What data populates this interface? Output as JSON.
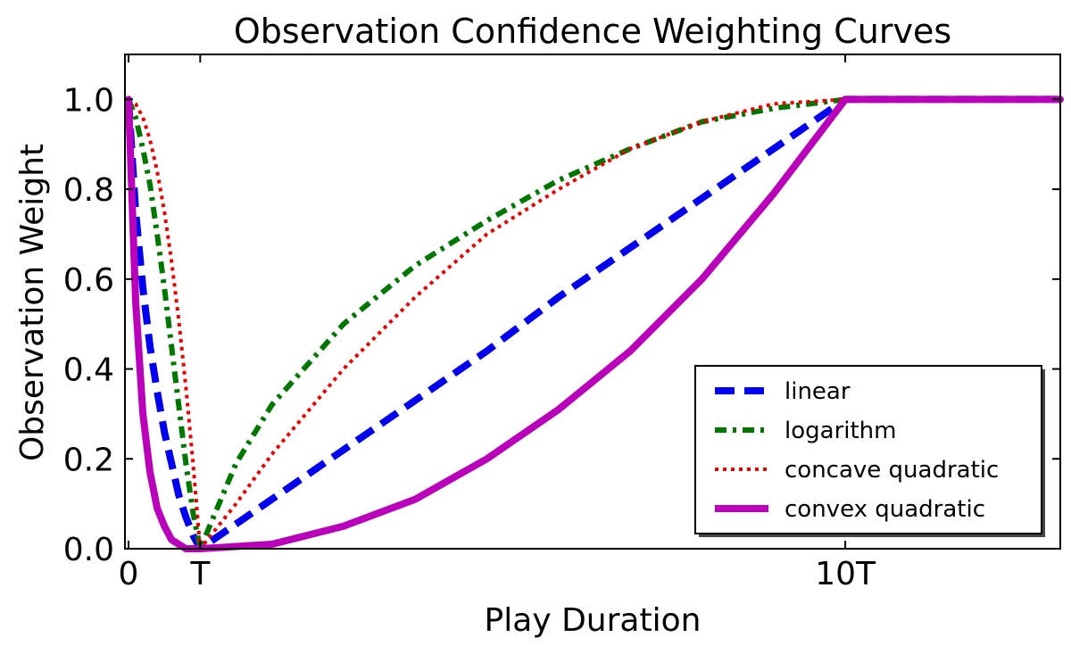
{
  "chart_data": {
    "type": "line",
    "title": "Observation Confidence Weighting Curves",
    "xlabel": "Play Duration",
    "ylabel": "Observation Weight",
    "xlim": [
      -0.05,
      13
    ],
    "ylim": [
      0,
      1.1
    ],
    "x_ticks": [
      {
        "value": 0,
        "label": "0"
      },
      {
        "value": 1,
        "label": "T"
      },
      {
        "value": 10,
        "label": "10T"
      }
    ],
    "y_ticks": [
      {
        "value": 0.0,
        "label": "0.0"
      },
      {
        "value": 0.2,
        "label": "0.2"
      },
      {
        "value": 0.4,
        "label": "0.4"
      },
      {
        "value": 0.6,
        "label": "0.6"
      },
      {
        "value": 0.8,
        "label": "0.8"
      },
      {
        "value": 1.0,
        "label": "1.0"
      }
    ],
    "grid": false,
    "legend_position": "lower-right",
    "series": [
      {
        "name": "linear",
        "color": "#0000ee",
        "style": "dashed",
        "x": [
          0,
          0.1,
          0.2,
          0.3,
          0.4,
          0.5,
          0.6,
          0.7,
          0.8,
          0.9,
          1,
          2,
          3,
          4,
          5,
          6,
          7,
          8,
          9,
          10,
          11,
          12,
          13
        ],
        "y": [
          1.0,
          0.75,
          0.58,
          0.45,
          0.35,
          0.26,
          0.19,
          0.12,
          0.07,
          0.03,
          0.0,
          0.11,
          0.22,
          0.33,
          0.44,
          0.56,
          0.67,
          0.78,
          0.89,
          1.0,
          1.0,
          1.0,
          1.0
        ]
      },
      {
        "name": "logarithm",
        "color": "#007700",
        "style": "dashdot",
        "x": [
          0,
          0.1,
          0.2,
          0.3,
          0.4,
          0.5,
          0.6,
          0.7,
          0.8,
          0.9,
          1,
          1.5,
          2,
          3,
          4,
          5,
          6,
          7,
          8,
          9,
          10,
          11,
          12,
          13
        ],
        "y": [
          1.0,
          0.96,
          0.89,
          0.81,
          0.7,
          0.58,
          0.45,
          0.32,
          0.19,
          0.08,
          0.0,
          0.19,
          0.32,
          0.5,
          0.63,
          0.73,
          0.82,
          0.89,
          0.95,
          0.98,
          1.0,
          1.0,
          1.0,
          1.0
        ]
      },
      {
        "name": "concave quadratic",
        "color": "#ee0000",
        "style": "dotted",
        "x": [
          0,
          0.1,
          0.2,
          0.3,
          0.4,
          0.5,
          0.6,
          0.7,
          0.8,
          0.9,
          1,
          1.5,
          2,
          3,
          4,
          5,
          6,
          7,
          8,
          9,
          10,
          11,
          12,
          13
        ],
        "y": [
          1.0,
          0.99,
          0.96,
          0.91,
          0.84,
          0.75,
          0.64,
          0.51,
          0.36,
          0.19,
          0.0,
          0.1,
          0.21,
          0.4,
          0.56,
          0.7,
          0.8,
          0.89,
          0.95,
          0.99,
          1.0,
          1.0,
          1.0,
          1.0
        ]
      },
      {
        "name": "convex quadratic",
        "color": "#bb00bb",
        "style": "solid",
        "x": [
          0,
          0.1,
          0.2,
          0.3,
          0.4,
          0.5,
          0.6,
          0.7,
          0.8,
          0.9,
          1,
          2,
          3,
          4,
          5,
          6,
          7,
          8,
          9,
          10,
          11,
          12,
          13
        ],
        "y": [
          1.0,
          0.55,
          0.3,
          0.17,
          0.09,
          0.05,
          0.02,
          0.01,
          0.0,
          0.0,
          0.0,
          0.01,
          0.05,
          0.11,
          0.2,
          0.31,
          0.44,
          0.6,
          0.79,
          1.0,
          1.0,
          1.0,
          1.0
        ]
      }
    ]
  }
}
